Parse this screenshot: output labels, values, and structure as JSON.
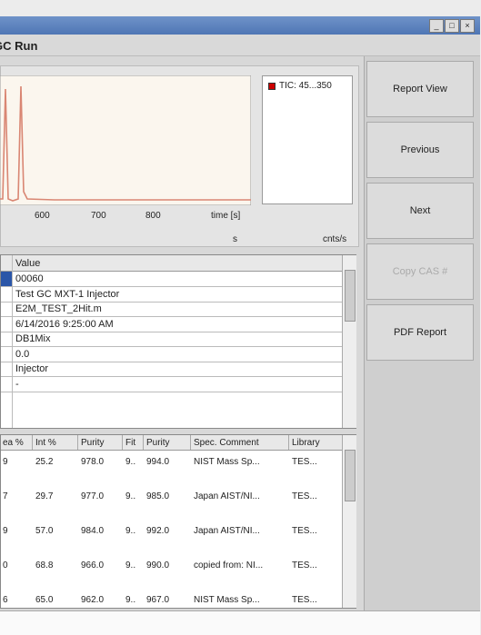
{
  "window": {
    "title": "GC Run",
    "controls": [
      "_",
      "□",
      "×"
    ]
  },
  "chart": {
    "x_tick_labels": [
      "600",
      "700",
      "800"
    ],
    "x_axis_label": "time [s]",
    "unit_left": "s",
    "unit_right": "cnts/s",
    "legend": "TIC: 45...350"
  },
  "buttons": [
    "Report View",
    "Previous",
    "Next",
    "Copy CAS #",
    "PDF Report"
  ],
  "info_table": {
    "header": "Value",
    "rows": [
      "00060",
      "Test GC MXT-1 Injector",
      "E2M_TEST_2Hit.m",
      "6/14/2016 9:25:00 AM",
      "DB1Mix",
      "0.0",
      "Injector",
      "-"
    ]
  },
  "hits_table": {
    "columns": [
      "ea %",
      "Int %",
      "Purity",
      "Fit",
      "Purity",
      "Spec. Comment",
      "Library"
    ],
    "rows": [
      [
        "9",
        "25.2",
        "978.0",
        "9..",
        "994.0",
        "NIST Mass Sp...",
        "TES..."
      ],
      [
        "7",
        "29.7",
        "977.0",
        "9..",
        "985.0",
        "Japan AIST/NI...",
        "TES..."
      ],
      [
        "9",
        "57.0",
        "984.0",
        "9..",
        "992.0",
        "Japan AIST/NI...",
        "TES..."
      ],
      [
        "0",
        "68.8",
        "966.0",
        "9..",
        "990.0",
        "copied from: NI...",
        "TES..."
      ],
      [
        "6",
        "65.0",
        "962.0",
        "9..",
        "967.0",
        "NIST Mass Sp...",
        "TES..."
      ]
    ]
  }
}
